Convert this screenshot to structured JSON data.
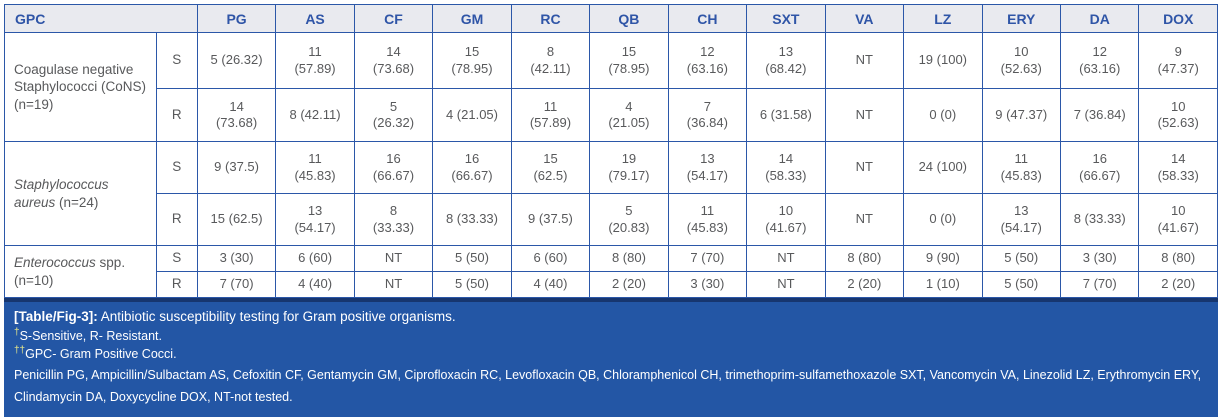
{
  "table": {
    "corner_label": "GPC",
    "columns": [
      "PG",
      "AS",
      "CF",
      "GM",
      "RC",
      "QB",
      "CH",
      "SXT",
      "VA",
      "LZ",
      "ERY",
      "DA",
      "DOX"
    ],
    "s_label": "S",
    "r_label": "R",
    "organisms": [
      {
        "name_italic": "",
        "name_regular": "Coagulase negative Staphylococci (CoNS) (n=19)",
        "s": [
          "5 (26.32)",
          "11\n(57.89)",
          "14\n(73.68)",
          "15\n(78.95)",
          "8\n(42.11)",
          "15\n(78.95)",
          "12\n(63.16)",
          "13\n(68.42)",
          "NT",
          "19 (100)",
          "10\n(52.63)",
          "12\n(63.16)",
          "9\n(47.37)"
        ],
        "r": [
          "14\n(73.68)",
          "8 (42.11)",
          "5\n(26.32)",
          "4 (21.05)",
          "11\n(57.89)",
          "4\n(21.05)",
          "7\n(36.84)",
          "6 (31.58)",
          "NT",
          "0 (0)",
          "9 (47.37)",
          "7 (36.84)",
          "10\n(52.63)"
        ]
      },
      {
        "name_italic": "Staphylococcus aureus",
        "name_regular": " (n=24)",
        "s": [
          "9 (37.5)",
          "11\n(45.83)",
          "16\n(66.67)",
          "16\n(66.67)",
          "15\n(62.5)",
          "19\n(79.17)",
          "13\n(54.17)",
          "14\n(58.33)",
          "NT",
          "24 (100)",
          "11\n(45.83)",
          "16\n(66.67)",
          "14\n(58.33)"
        ],
        "r": [
          "15 (62.5)",
          "13\n(54.17)",
          "8\n(33.33)",
          "8 (33.33)",
          "9 (37.5)",
          "5\n(20.83)",
          "11\n(45.83)",
          "10\n(41.67)",
          "NT",
          "0 (0)",
          "13\n(54.17)",
          "8 (33.33)",
          "10\n(41.67)"
        ]
      },
      {
        "name_italic": "Enterococcus",
        "name_regular": " spp. (n=10)",
        "s": [
          "3 (30)",
          "6 (60)",
          "NT",
          "5 (50)",
          "6 (60)",
          "8 (80)",
          "7 (70)",
          "NT",
          "8 (80)",
          "9 (90)",
          "5 (50)",
          "3 (30)",
          "8 (80)"
        ],
        "r": [
          "7 (70)",
          "4 (40)",
          "NT",
          "5 (50)",
          "4 (40)",
          "2 (20)",
          "3 (30)",
          "NT",
          "2 (20)",
          "1 (10)",
          "5 (50)",
          "7 (70)",
          "2 (20)"
        ]
      }
    ]
  },
  "caption": {
    "label": "[Table/Fig-3]:",
    "title": " Antibiotic susceptibility testing for Gram positive organisms.",
    "footnote1_symbol": "†",
    "footnote1_text": "S-Sensitive, R- Resistant.",
    "footnote2_symbol": "††",
    "footnote2_text": "GPC- Gram Positive Cocci.",
    "abbreviations": "Penicillin PG, Ampicillin/Sulbactam AS, Cefoxitin CF, Gentamycin GM, Ciprofloxacin RC, Levofloxacin QB, Chloramphenicol CH, trimethoprim-sulfamethoxazole SXT, Vancomycin VA, Linezolid LZ, Erythromycin ERY, Clindamycin DA, Doxycycline DOX, NT-not tested."
  },
  "colors": {
    "table_border": "#2b57a8",
    "header_background": "#e9eaef",
    "header_text": "#2f55a7",
    "body_text": "#58595b",
    "caption_background": "#2356a5",
    "caption_top_border": "#17366f",
    "caption_text": "#ffffff",
    "dagger_accent": "#e9e98a"
  }
}
